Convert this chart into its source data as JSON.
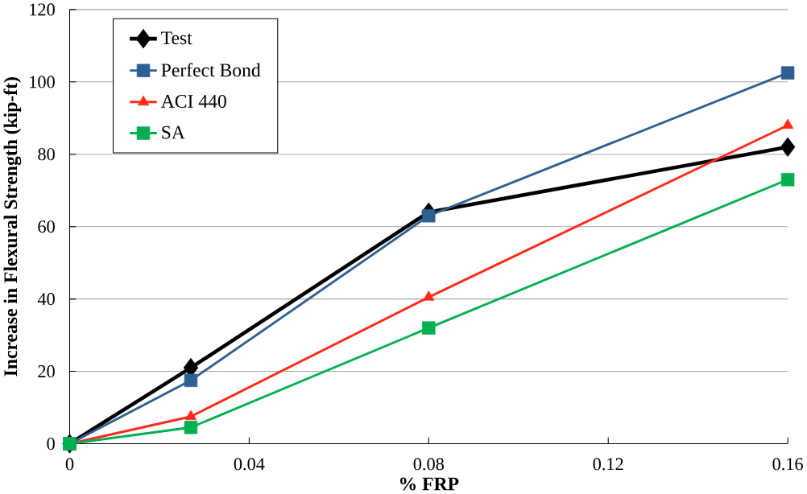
{
  "chart_data": {
    "type": "line",
    "xlabel": "% FRP",
    "ylabel": "Increase in Flexural Strength (kip-ft)",
    "x": [
      0,
      0.027,
      0.08,
      0.16
    ],
    "series": [
      {
        "name": "Test",
        "color": "#000000",
        "values": [
          0,
          21,
          64,
          82
        ],
        "marker": "diamond"
      },
      {
        "name": "Perfect Bond",
        "color": "#2e6093",
        "values": [
          0,
          17.5,
          63,
          102.5
        ],
        "marker": "square"
      },
      {
        "name": "ACI 440",
        "color": "#ff2a1a",
        "values": [
          0,
          7.5,
          40.5,
          88
        ],
        "marker": "triangle"
      },
      {
        "name": "SA",
        "color": "#00b050",
        "values": [
          0,
          4.5,
          32,
          73
        ],
        "marker": "square"
      }
    ],
    "xlim": [
      0,
      0.16
    ],
    "xticks": [
      0,
      0.04,
      0.08,
      0.12,
      0.16
    ],
    "ylim": [
      0,
      120
    ],
    "yticks": [
      0,
      20,
      40,
      60,
      80,
      100,
      120
    ],
    "grid": "y",
    "legend": "top left",
    "line_style": "solid"
  }
}
